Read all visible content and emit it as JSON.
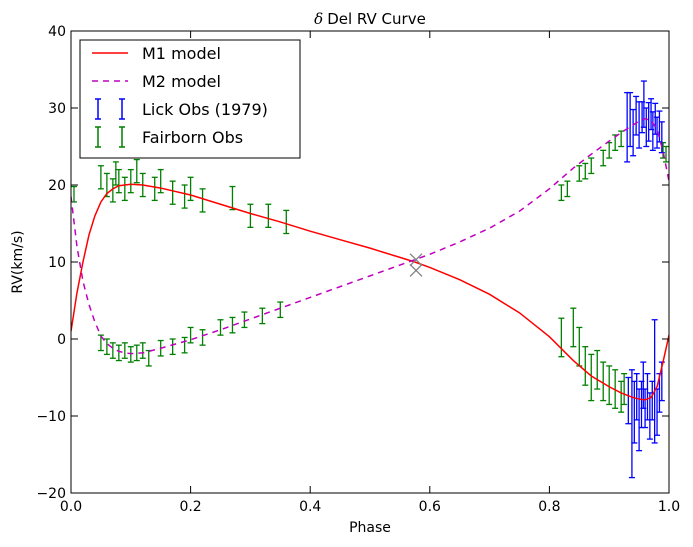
{
  "chart_data": {
    "type": "line",
    "title_symbol": "δ",
    "title": "Del RV Curve",
    "xlabel": "Phase",
    "ylabel": "RV(km/s)",
    "xlim": [
      0.0,
      1.0
    ],
    "ylim": [
      -20,
      40
    ],
    "xticks": [
      0.0,
      0.2,
      0.4,
      0.6,
      0.8,
      1.0
    ],
    "xtick_labels": [
      "0.0",
      "0.2",
      "0.4",
      "0.6",
      "0.8",
      "1.0"
    ],
    "yticks": [
      -20,
      -10,
      0,
      10,
      20,
      30,
      40
    ],
    "ytick_labels": [
      "−20",
      "−10",
      "0",
      "10",
      "20",
      "30",
      "40"
    ],
    "legend_position": "upper-left",
    "colors": {
      "m1": "#ff0000",
      "m2": "#bf00bf",
      "lick": "#0000ff",
      "fairborn": "#008000",
      "cross": "#808080"
    },
    "series": [
      {
        "name": "M1 model",
        "style": "solid",
        "x": [
          0.0,
          0.01,
          0.02,
          0.03,
          0.04,
          0.05,
          0.06,
          0.07,
          0.08,
          0.09,
          0.1,
          0.12,
          0.15,
          0.2,
          0.25,
          0.3,
          0.35,
          0.4,
          0.45,
          0.5,
          0.55,
          0.575,
          0.6,
          0.65,
          0.7,
          0.75,
          0.8,
          0.84,
          0.87,
          0.9,
          0.92,
          0.94,
          0.95,
          0.96,
          0.97,
          0.98,
          0.99,
          1.0
        ],
        "y": [
          1.0,
          6.0,
          10.0,
          13.5,
          16.0,
          17.8,
          18.9,
          19.5,
          19.9,
          20.0,
          20.1,
          20.0,
          19.6,
          18.7,
          17.5,
          16.3,
          15.2,
          14.0,
          12.9,
          11.8,
          10.6,
          10.0,
          9.3,
          7.7,
          5.8,
          3.4,
          0.3,
          -2.8,
          -4.8,
          -6.2,
          -7.0,
          -7.6,
          -7.8,
          -7.9,
          -7.6,
          -6.2,
          -3.0,
          0.5
        ]
      },
      {
        "name": "M2 model",
        "style": "dashed",
        "x": [
          0.0,
          0.01,
          0.02,
          0.03,
          0.04,
          0.05,
          0.06,
          0.07,
          0.08,
          0.09,
          0.1,
          0.12,
          0.15,
          0.2,
          0.25,
          0.3,
          0.35,
          0.4,
          0.45,
          0.5,
          0.55,
          0.575,
          0.6,
          0.65,
          0.7,
          0.75,
          0.8,
          0.84,
          0.87,
          0.9,
          0.92,
          0.94,
          0.95,
          0.96,
          0.97,
          0.98,
          0.99,
          1.0
        ],
        "y": [
          18.5,
          12.0,
          7.5,
          4.5,
          2.2,
          0.4,
          -0.6,
          -1.2,
          -1.6,
          -1.8,
          -1.9,
          -1.8,
          -1.2,
          -0.1,
          1.2,
          2.6,
          4.0,
          5.4,
          6.8,
          8.2,
          9.6,
          10.3,
          11.0,
          12.6,
          14.4,
          16.6,
          19.5,
          22.2,
          24.0,
          25.7,
          26.8,
          27.8,
          28.3,
          28.6,
          28.4,
          27.2,
          24.4,
          20.5
        ]
      },
      {
        "name": "Lick Obs (1979)",
        "style": "errorbar",
        "points": [
          [
            0.93,
            27.5,
            4.5
          ],
          [
            0.935,
            28.5,
            3.5
          ],
          [
            0.94,
            26.8,
            3.0
          ],
          [
            0.945,
            29.0,
            2.5
          ],
          [
            0.95,
            27.8,
            3.0
          ],
          [
            0.955,
            28.8,
            2.0
          ],
          [
            0.958,
            30.5,
            3.0
          ],
          [
            0.962,
            27.5,
            2.5
          ],
          [
            0.966,
            28.2,
            2.5
          ],
          [
            0.97,
            29.2,
            2.0
          ],
          [
            0.973,
            27.0,
            2.5
          ],
          [
            0.977,
            28.6,
            2.0
          ],
          [
            0.98,
            26.8,
            2.0
          ],
          [
            0.984,
            27.6,
            2.0
          ],
          [
            0.988,
            26.2,
            2.0
          ],
          [
            0.932,
            -8.0,
            3.0
          ],
          [
            0.938,
            -11.0,
            7.0
          ],
          [
            0.942,
            -9.5,
            4.0
          ],
          [
            0.946,
            -7.5,
            3.0
          ],
          [
            0.95,
            -10.5,
            4.0
          ],
          [
            0.954,
            -8.5,
            3.0
          ],
          [
            0.957,
            -6.0,
            3.0
          ],
          [
            0.96,
            -9.0,
            2.5
          ],
          [
            0.964,
            -7.5,
            3.0
          ],
          [
            0.968,
            -10.0,
            3.0
          ],
          [
            0.972,
            -8.0,
            2.5
          ],
          [
            0.976,
            -5.5,
            8.0
          ],
          [
            0.98,
            -9.5,
            3.0
          ],
          [
            0.984,
            -7.0,
            2.5
          ],
          [
            0.988,
            -5.5,
            2.5
          ]
        ]
      },
      {
        "name": "Fairborn Obs",
        "style": "errorbar",
        "points": [
          [
            0.005,
            18.8,
            1.0
          ],
          [
            0.05,
            21.0,
            1.5
          ],
          [
            0.06,
            20.0,
            1.5
          ],
          [
            0.07,
            19.3,
            1.5
          ],
          [
            0.075,
            21.5,
            1.5
          ],
          [
            0.08,
            20.5,
            1.5
          ],
          [
            0.09,
            19.5,
            1.5
          ],
          [
            0.1,
            20.5,
            1.5
          ],
          [
            0.11,
            21.8,
            1.5
          ],
          [
            0.12,
            20.0,
            1.5
          ],
          [
            0.14,
            19.5,
            1.5
          ],
          [
            0.15,
            20.5,
            1.5
          ],
          [
            0.17,
            19.0,
            1.5
          ],
          [
            0.19,
            18.5,
            1.5
          ],
          [
            0.2,
            19.5,
            1.5
          ],
          [
            0.22,
            18.0,
            1.5
          ],
          [
            0.27,
            18.3,
            1.5
          ],
          [
            0.3,
            16.0,
            1.5
          ],
          [
            0.33,
            16.0,
            1.5
          ],
          [
            0.36,
            15.2,
            1.5
          ],
          [
            0.05,
            -0.5,
            1.0
          ],
          [
            0.06,
            -1.0,
            1.0
          ],
          [
            0.07,
            -1.5,
            1.0
          ],
          [
            0.08,
            -1.8,
            1.0
          ],
          [
            0.09,
            -1.5,
            1.0
          ],
          [
            0.1,
            -2.0,
            1.0
          ],
          [
            0.11,
            -1.8,
            1.0
          ],
          [
            0.12,
            -1.5,
            1.0
          ],
          [
            0.13,
            -2.5,
            1.0
          ],
          [
            0.15,
            -1.2,
            1.0
          ],
          [
            0.17,
            -1.0,
            1.0
          ],
          [
            0.19,
            -0.8,
            1.0
          ],
          [
            0.2,
            0.5,
            1.0
          ],
          [
            0.22,
            0.2,
            1.0
          ],
          [
            0.25,
            1.5,
            1.0
          ],
          [
            0.27,
            1.8,
            1.0
          ],
          [
            0.29,
            2.5,
            1.0
          ],
          [
            0.32,
            3.0,
            1.0
          ],
          [
            0.35,
            3.8,
            1.0
          ],
          [
            0.82,
            19.0,
            1.0
          ],
          [
            0.83,
            19.5,
            1.0
          ],
          [
            0.85,
            21.5,
            1.0
          ],
          [
            0.86,
            21.8,
            1.0
          ],
          [
            0.87,
            22.5,
            1.0
          ],
          [
            0.89,
            23.5,
            1.0
          ],
          [
            0.9,
            24.5,
            1.0
          ],
          [
            0.91,
            25.5,
            1.0
          ],
          [
            0.92,
            26.0,
            1.0
          ],
          [
            0.99,
            24.5,
            1.0
          ],
          [
            0.995,
            24.0,
            1.0
          ],
          [
            0.82,
            0.2,
            2.5
          ],
          [
            0.84,
            1.5,
            2.5
          ],
          [
            0.85,
            -1.0,
            2.5
          ],
          [
            0.86,
            -3.5,
            2.5
          ],
          [
            0.87,
            -5.0,
            3.0
          ],
          [
            0.88,
            -4.0,
            2.5
          ],
          [
            0.89,
            -5.5,
            2.5
          ],
          [
            0.9,
            -6.0,
            2.5
          ],
          [
            0.91,
            -6.5,
            2.5
          ],
          [
            0.92,
            -7.5,
            2.0
          ],
          [
            0.925,
            -6.5,
            2.0
          ]
        ]
      }
    ],
    "annotations": [
      {
        "type": "cross",
        "x": 0.577,
        "y": 10.3
      },
      {
        "type": "cross",
        "x": 0.577,
        "y": 8.9
      }
    ]
  }
}
